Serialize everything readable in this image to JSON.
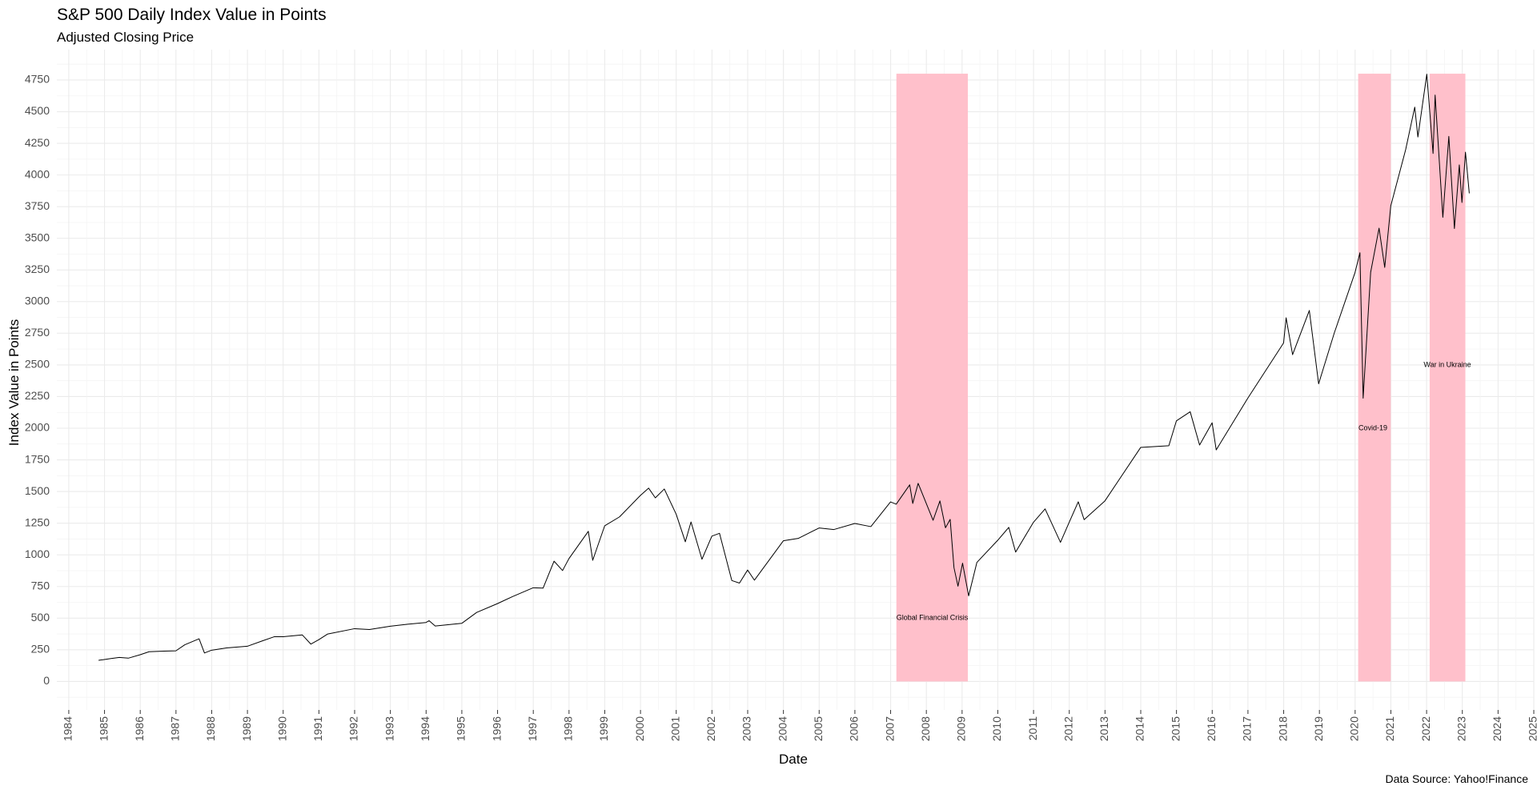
{
  "chart_data": {
    "type": "line",
    "title": "S&P 500 Daily Index Value in Points",
    "subtitle": "Adjusted Closing Price",
    "caption": "Data Source: Yahoo!Finance",
    "xlabel": "Date",
    "ylabel": "Index Value in Points",
    "xlim": [
      "1983-09-01",
      "2025-01-01"
    ],
    "ylim": [
      -225,
      4990
    ],
    "x_ticks": [
      "1984",
      "1985",
      "1986",
      "1987",
      "1988",
      "1989",
      "1990",
      "1991",
      "1992",
      "1993",
      "1994",
      "1995",
      "1996",
      "1997",
      "1998",
      "1999",
      "2000",
      "2001",
      "2002",
      "2003",
      "2004",
      "2005",
      "2006",
      "2007",
      "2008",
      "2009",
      "2010",
      "2011",
      "2012",
      "2013",
      "2014",
      "2015",
      "2016",
      "2017",
      "2018",
      "2019",
      "2020",
      "2021",
      "2022",
      "2023",
      "2024",
      "2025"
    ],
    "y_ticks": [
      0,
      250,
      500,
      750,
      1000,
      1250,
      1500,
      1750,
      2000,
      2250,
      2500,
      2750,
      3000,
      3250,
      3500,
      3750,
      4000,
      4250,
      4500,
      4750
    ],
    "grid": true,
    "background": "#ffffff",
    "line_color": "#000000",
    "shade_color": "#ffc0cb",
    "annotations": [
      {
        "label": "Global Financial Crisis",
        "x_start": "2007-03-01",
        "x_end": "2009-03-01",
        "y_start": 0,
        "y_end": 4800,
        "label_x": "2008-03-01",
        "label_y": 500
      },
      {
        "label": "Covid-19",
        "x_start": "2020-02-01",
        "x_end": "2020-12-31",
        "y_start": 0,
        "y_end": 4800,
        "label_x": "2020-07-01",
        "label_y": 2000
      },
      {
        "label": "War in Ukraine",
        "x_start": "2022-02-01",
        "x_end": "2023-02-01",
        "y_start": 0,
        "y_end": 4800,
        "label_x": "2022-08-01",
        "label_y": 2500
      }
    ],
    "series": [
      {
        "points": [
          [
            "1984-11-01",
            167
          ],
          [
            "1985-03-01",
            180
          ],
          [
            "1985-06-01",
            190
          ],
          [
            "1985-09-01",
            184
          ],
          [
            "1985-12-31",
            211
          ],
          [
            "1986-04-01",
            235
          ],
          [
            "1986-09-01",
            240
          ],
          [
            "1986-12-31",
            242
          ],
          [
            "1987-04-01",
            290
          ],
          [
            "1987-08-25",
            337
          ],
          [
            "1987-10-19",
            225
          ],
          [
            "1987-12-31",
            247
          ],
          [
            "1988-06-01",
            265
          ],
          [
            "1988-12-31",
            278
          ],
          [
            "1989-06-01",
            320
          ],
          [
            "1989-10-01",
            353
          ],
          [
            "1989-12-31",
            353
          ],
          [
            "1990-07-15",
            368
          ],
          [
            "1990-10-11",
            295
          ],
          [
            "1990-12-31",
            330
          ],
          [
            "1991-04-01",
            375
          ],
          [
            "1991-12-31",
            417
          ],
          [
            "1992-06-01",
            410
          ],
          [
            "1992-12-31",
            436
          ],
          [
            "1993-06-01",
            450
          ],
          [
            "1993-12-31",
            466
          ],
          [
            "1994-02-01",
            480
          ],
          [
            "1994-04-04",
            438
          ],
          [
            "1994-12-31",
            459
          ],
          [
            "1995-06-01",
            545
          ],
          [
            "1995-12-31",
            615
          ],
          [
            "1996-06-01",
            670
          ],
          [
            "1996-12-31",
            740
          ],
          [
            "1997-04-11",
            737
          ],
          [
            "1997-08-01",
            950
          ],
          [
            "1997-10-27",
            876
          ],
          [
            "1997-12-31",
            970
          ],
          [
            "1998-07-17",
            1186
          ],
          [
            "1998-08-31",
            957
          ],
          [
            "1998-12-31",
            1229
          ],
          [
            "1999-06-01",
            1300
          ],
          [
            "1999-12-31",
            1469
          ],
          [
            "2000-03-24",
            1527
          ],
          [
            "2000-06-01",
            1450
          ],
          [
            "2000-09-01",
            1520
          ],
          [
            "2001-01-01",
            1320
          ],
          [
            "2001-04-04",
            1103
          ],
          [
            "2001-06-01",
            1260
          ],
          [
            "2001-09-21",
            965
          ],
          [
            "2001-12-31",
            1148
          ],
          [
            "2002-03-19",
            1170
          ],
          [
            "2002-07-23",
            797
          ],
          [
            "2002-10-09",
            777
          ],
          [
            "2002-12-31",
            880
          ],
          [
            "2003-03-11",
            800
          ],
          [
            "2003-12-31",
            1111
          ],
          [
            "2004-06-01",
            1130
          ],
          [
            "2004-12-31",
            1212
          ],
          [
            "2005-06-01",
            1200
          ],
          [
            "2005-12-31",
            1248
          ],
          [
            "2006-06-13",
            1223
          ],
          [
            "2006-12-31",
            1418
          ],
          [
            "2007-02-27",
            1400
          ],
          [
            "2007-07-15",
            1553
          ],
          [
            "2007-08-15",
            1406
          ],
          [
            "2007-10-09",
            1565
          ],
          [
            "2008-03-10",
            1273
          ],
          [
            "2008-05-19",
            1426
          ],
          [
            "2008-07-15",
            1214
          ],
          [
            "2008-09-01",
            1280
          ],
          [
            "2008-10-10",
            899
          ],
          [
            "2008-11-20",
            752
          ],
          [
            "2009-01-06",
            934
          ],
          [
            "2009-03-09",
            676
          ],
          [
            "2009-06-01",
            940
          ],
          [
            "2009-12-31",
            1115
          ],
          [
            "2010-04-23",
            1217
          ],
          [
            "2010-07-02",
            1022
          ],
          [
            "2010-12-31",
            1257
          ],
          [
            "2011-04-29",
            1363
          ],
          [
            "2011-10-03",
            1099
          ],
          [
            "2011-12-31",
            1257
          ],
          [
            "2012-04-02",
            1419
          ],
          [
            "2012-06-01",
            1278
          ],
          [
            "2012-12-31",
            1426
          ],
          [
            "2013-12-31",
            1848
          ],
          [
            "2014-10-15",
            1862
          ],
          [
            "2014-12-31",
            2058
          ],
          [
            "2015-05-21",
            2130
          ],
          [
            "2015-08-25",
            1867
          ],
          [
            "2015-12-31",
            2043
          ],
          [
            "2016-02-11",
            1829
          ],
          [
            "2016-12-31",
            2238
          ],
          [
            "2017-12-31",
            2673
          ],
          [
            "2018-01-26",
            2872
          ],
          [
            "2018-04-02",
            2581
          ],
          [
            "2018-09-20",
            2930
          ],
          [
            "2018-12-24",
            2351
          ],
          [
            "2019-06-01",
            2750
          ],
          [
            "2019-12-31",
            3230
          ],
          [
            "2020-02-19",
            3386
          ],
          [
            "2020-03-23",
            2237
          ],
          [
            "2020-06-08",
            3232
          ],
          [
            "2020-09-02",
            3580
          ],
          [
            "2020-10-30",
            3270
          ],
          [
            "2020-12-31",
            3756
          ],
          [
            "2021-06-01",
            4200
          ],
          [
            "2021-09-02",
            4536
          ],
          [
            "2021-10-04",
            4300
          ],
          [
            "2022-01-03",
            4796
          ],
          [
            "2022-03-08",
            4170
          ],
          [
            "2022-03-29",
            4631
          ],
          [
            "2022-06-16",
            3666
          ],
          [
            "2022-08-16",
            4305
          ],
          [
            "2022-10-12",
            3577
          ],
          [
            "2022-12-01",
            4080
          ],
          [
            "2022-12-28",
            3783
          ],
          [
            "2023-02-02",
            4180
          ],
          [
            "2023-03-13",
            3855
          ]
        ]
      }
    ]
  }
}
